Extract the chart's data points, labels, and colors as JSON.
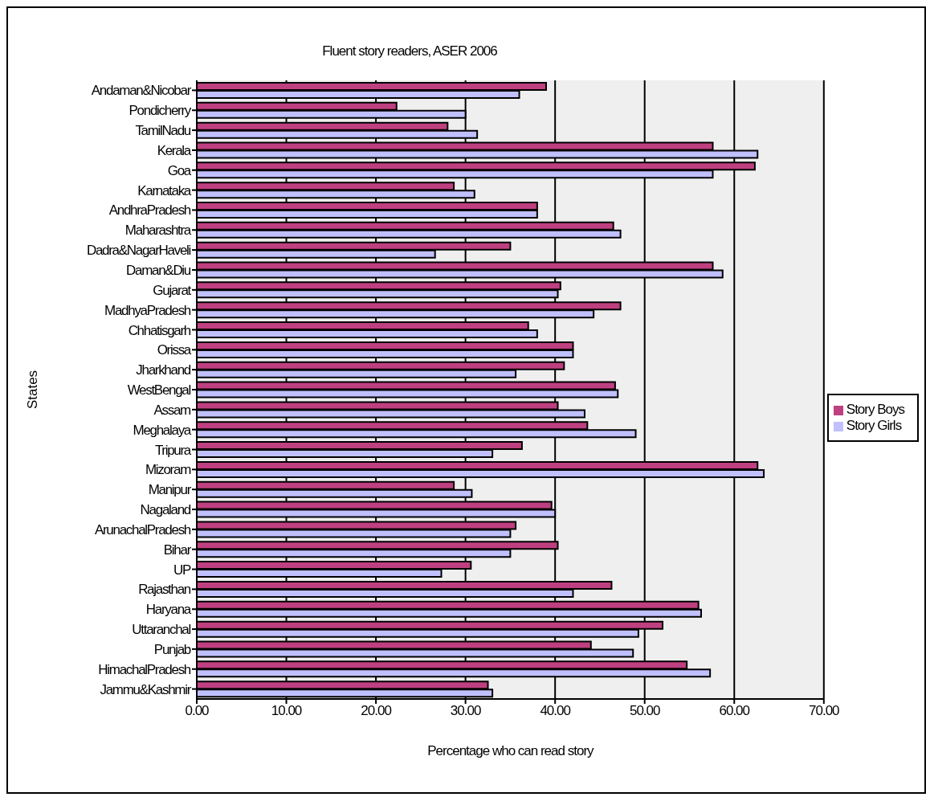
{
  "chart_data": {
    "type": "bar",
    "orientation": "horizontal",
    "title": "Fluent story readers, ASER 2006",
    "xlabel": "Percentage who can read story",
    "ylabel": "States",
    "categories": [
      "Andaman&Nicobar",
      "Pondicherry",
      "TamilNadu",
      "Kerala",
      "Goa",
      "Karnataka",
      "AndhraPradesh",
      "Maharashtra",
      "Dadra&NagarHaveli",
      "Daman&Diu",
      "Gujarat",
      "MadhyaPradesh",
      "Chhatisgarh",
      "Orissa",
      "Jharkhand",
      "WestBengal",
      "Assam",
      "Meghalaya",
      "Tripura",
      "Mizoram",
      "Manipur",
      "Nagaland",
      "ArunachalPradesh",
      "Bihar",
      "UP",
      "Rajasthan",
      "Haryana",
      "Uttaranchal",
      "Punjab",
      "HimachalPradesh",
      "Jammu&Kashmir"
    ],
    "series": [
      {
        "name": "Story Boys",
        "color": "#bf4080",
        "values": [
          39,
          22.3,
          28,
          57.6,
          62.3,
          28.7,
          38,
          46.5,
          35,
          57.6,
          40.6,
          47.3,
          37,
          42,
          41,
          46.7,
          40.3,
          43.6,
          36.3,
          62.6,
          28.7,
          39.6,
          35.6,
          40.3,
          30.6,
          46.3,
          56,
          52,
          44,
          54.7,
          32.5
        ]
      },
      {
        "name": "Story Girls",
        "color": "#c0c0ff",
        "values": [
          36,
          30,
          31.3,
          62.6,
          57.6,
          31,
          38,
          47.3,
          26.6,
          58.7,
          40.3,
          44.3,
          38,
          42,
          35.6,
          47,
          43.3,
          49,
          33,
          63.3,
          30.7,
          40,
          35,
          35,
          27.3,
          42,
          56.3,
          49.3,
          48.7,
          57.3,
          33
        ]
      }
    ],
    "xlim": [
      0,
      70
    ],
    "xticks": [
      {
        "value": 0,
        "label": "0.00"
      },
      {
        "value": 10,
        "label": "10.00"
      },
      {
        "value": 20,
        "label": "20.00"
      },
      {
        "value": 30,
        "label": "30.00"
      },
      {
        "value": 40,
        "label": "40.00"
      },
      {
        "value": 50,
        "label": "50.00"
      },
      {
        "value": 60,
        "label": "60.00"
      },
      {
        "value": 70,
        "label": "70.00"
      }
    ],
    "grid": "x",
    "legend": "right"
  }
}
